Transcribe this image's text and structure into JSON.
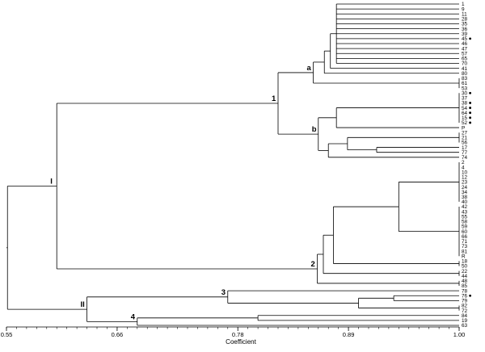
{
  "dendrogram": {
    "axis": {
      "title": "Coefficient",
      "range": [
        0.55,
        1.0
      ],
      "ticks": [
        {
          "value": 0.55,
          "label": "0.55"
        },
        {
          "value": 0.66,
          "label": "0.66"
        },
        {
          "value": 0.78,
          "label": "0.78"
        },
        {
          "value": 0.89,
          "label": "0.89"
        },
        {
          "value": 1.0,
          "label": "1.00"
        }
      ]
    },
    "leaves": [
      {
        "label": "1"
      },
      {
        "label": "9"
      },
      {
        "label": "11"
      },
      {
        "label": "28"
      },
      {
        "label": "35"
      },
      {
        "label": "36"
      },
      {
        "label": "39"
      },
      {
        "label": "45",
        "marked": true
      },
      {
        "label": "46"
      },
      {
        "label": "47"
      },
      {
        "label": "57"
      },
      {
        "label": "65"
      },
      {
        "label": "70"
      },
      {
        "label": "41"
      },
      {
        "label": "80"
      },
      {
        "label": "83"
      },
      {
        "label": "61"
      },
      {
        "label": "53"
      },
      {
        "label": "30",
        "marked": true
      },
      {
        "label": "37"
      },
      {
        "label": "38",
        "marked": true
      },
      {
        "label": "54",
        "marked": true
      },
      {
        "label": "64",
        "marked": true
      },
      {
        "label": "15",
        "marked": true
      },
      {
        "label": "52",
        "marked": true
      },
      {
        "label": "P"
      },
      {
        "label": "27"
      },
      {
        "label": "21"
      },
      {
        "label": "56"
      },
      {
        "label": "17"
      },
      {
        "label": "77"
      },
      {
        "label": "74"
      },
      {
        "label": "2"
      },
      {
        "label": "4"
      },
      {
        "label": "10"
      },
      {
        "label": "12"
      },
      {
        "label": "23"
      },
      {
        "label": "24"
      },
      {
        "label": "34"
      },
      {
        "label": "38"
      },
      {
        "label": "40"
      },
      {
        "label": "42"
      },
      {
        "label": "43"
      },
      {
        "label": "55"
      },
      {
        "label": "58"
      },
      {
        "label": "59"
      },
      {
        "label": "60"
      },
      {
        "label": "66"
      },
      {
        "label": "71"
      },
      {
        "label": "73"
      },
      {
        "label": "81"
      },
      {
        "label": "R"
      },
      {
        "label": "18"
      },
      {
        "label": "50"
      },
      {
        "label": "22"
      },
      {
        "label": "44"
      },
      {
        "label": "48"
      },
      {
        "label": "85"
      },
      {
        "label": "78"
      },
      {
        "label": "76",
        "marked": true
      },
      {
        "label": "79"
      },
      {
        "label": "82"
      },
      {
        "label": "72"
      },
      {
        "label": "84"
      },
      {
        "label": "19"
      },
      {
        "label": "63"
      }
    ],
    "tree": {
      "h": 0.551,
      "children": [
        {
          "h": 0.6,
          "label": "I",
          "children": [
            {
              "h": 0.82,
              "label": "1",
              "children": [
                {
                  "h": 0.855,
                  "label": "a",
                  "children": [
                    {
                      "h": 0.866,
                      "children": [
                        {
                          "h": 0.872,
                          "children": [
                            {
                              "h": 0.878,
                              "leaves": [
                                0,
                                12
                              ]
                            },
                            {
                              "leaf": 13
                            }
                          ]
                        },
                        {
                          "leaf": 14
                        }
                      ]
                    },
                    {
                      "leaves": [
                        15,
                        17
                      ]
                    }
                  ]
                },
                {
                  "h": 0.86,
                  "label": "b",
                  "children": [
                    {
                      "h": 0.878,
                      "children": [
                        {
                          "leaves": [
                            18,
                            24
                          ]
                        },
                        {
                          "leaf": 25
                        }
                      ]
                    },
                    {
                      "h": 0.87,
                      "children": [
                        {
                          "h": 0.889,
                          "children": [
                            {
                              "leaves": [
                                26,
                                28
                              ]
                            },
                            {
                              "h": 0.918,
                              "leaves": [
                                29,
                                30
                              ]
                            }
                          ]
                        },
                        {
                          "leaf": 31
                        }
                      ]
                    }
                  ]
                }
              ]
            },
            {
              "h": 0.859,
              "label": "2",
              "children": [
                {
                  "h": 0.865,
                  "children": [
                    {
                      "h": 0.875,
                      "children": [
                        {
                          "h": 0.94,
                          "children": [
                            {
                              "leaves": [
                                32,
                                40
                              ]
                            },
                            {
                              "leaves": [
                                41,
                                51
                              ]
                            }
                          ]
                        },
                        {
                          "leaves": [
                            52,
                            53
                          ]
                        }
                      ]
                    },
                    {
                      "leaves": [
                        54,
                        55
                      ]
                    }
                  ]
                },
                {
                  "leaves": [
                    56,
                    57
                  ]
                }
              ]
            }
          ]
        },
        {
          "h": 0.63,
          "label": "II",
          "children": [
            {
              "h": 0.77,
              "label": "3",
              "children": [
                {
                  "leaf": 58
                },
                {
                  "h": 0.9,
                  "children": [
                    {
                      "h": 0.935,
                      "leaves": [
                        59,
                        60
                      ]
                    },
                    {
                      "leaves": [
                        61,
                        62
                      ]
                    }
                  ]
                }
              ]
            },
            {
              "h": 0.68,
              "label": "4",
              "children": [
                {
                  "h": 0.8,
                  "leaves": [
                    63,
                    64
                  ]
                },
                {
                  "leaf": 65
                }
              ]
            }
          ]
        }
      ]
    }
  }
}
